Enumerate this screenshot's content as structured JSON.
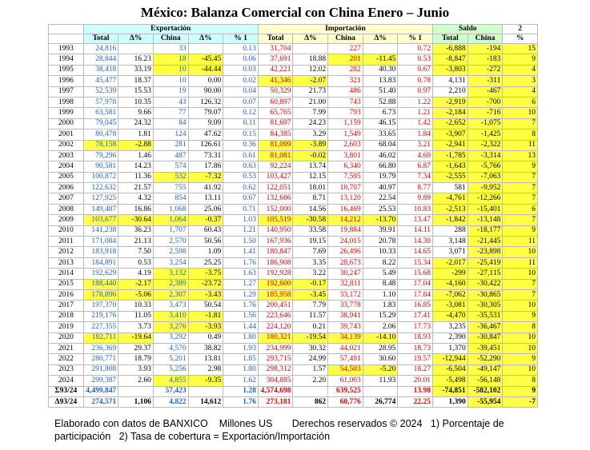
{
  "header": {
    "title": "México: Balanza Comercial con China Enero – Junio"
  },
  "table": {
    "groups": [
      "Exportación",
      "Importación",
      "Saldo",
      "2"
    ],
    "columns": [
      "Total",
      "Δ%",
      "China",
      "Δ%",
      "% 1",
      "Total",
      "Δ%",
      "China",
      "Δ%",
      "% 1",
      "Total",
      "China",
      "%"
    ],
    "rows": [
      [
        "1993",
        "24,816",
        "",
        "33",
        "",
        "0.13",
        "31,704",
        "",
        "227",
        "",
        "0.72",
        "-6,888",
        "-194",
        "15"
      ],
      [
        "1994",
        "28,844",
        "16.23",
        "18",
        "-45.45",
        "0.06",
        "37,691",
        "18.88",
        "201",
        "-11.45",
        "0.53",
        "-8,847",
        "-183",
        "9"
      ],
      [
        "1995",
        "38,418",
        "33.19",
        "10",
        "-44.44",
        "0.03",
        "42,221",
        "12.02",
        "282",
        "40.30",
        "0.67",
        "-3,803",
        "-272",
        "4"
      ],
      [
        "1996",
        "45,477",
        "18.37",
        "10",
        "0.00",
        "0.02",
        "41,346",
        "-2.07",
        "321",
        "13.83",
        "0.78",
        "4,131",
        "-311",
        "3"
      ],
      [
        "1997",
        "52,539",
        "15.53",
        "19",
        "90.00",
        "0.04",
        "50,329",
        "21.73",
        "486",
        "51.40",
        "0.97",
        "2,210",
        "-467",
        "4"
      ],
      [
        "1998",
        "57,978",
        "10.35",
        "43",
        "126.32",
        "0.07",
        "60,897",
        "21.00",
        "743",
        "52.88",
        "1.22",
        "-2,919",
        "-700",
        "6"
      ],
      [
        "1999",
        "63,581",
        "9.66",
        "77",
        "79.07",
        "0.12",
        "65,765",
        "7.99",
        "793",
        "6.73",
        "1.21",
        "-2,184",
        "-716",
        "10"
      ],
      [
        "2000",
        "79,045",
        "24.32",
        "84",
        "9.09",
        "0.11",
        "81,697",
        "24.23",
        "1,159",
        "46.15",
        "1.42",
        "-2,652",
        "-1,075",
        "7"
      ],
      [
        "2001",
        "80,478",
        "1.81",
        "124",
        "47.62",
        "0.15",
        "84,385",
        "3.29",
        "1,549",
        "33.65",
        "1.84",
        "-3,907",
        "-1,425",
        "8"
      ],
      [
        "2002",
        "78,158",
        "-2.88",
        "281",
        "126.61",
        "0.36",
        "81,099",
        "-3.89",
        "2,603",
        "68.04",
        "3.21",
        "-2,941",
        "-2,322",
        "11"
      ],
      [
        "2003",
        "79,296",
        "1.46",
        "487",
        "73.31",
        "0.61",
        "81,081",
        "-0.02",
        "3,801",
        "46.02",
        "4.69",
        "-1,785",
        "-3,314",
        "13"
      ],
      [
        "2004",
        "90,581",
        "14.23",
        "574",
        "17.86",
        "0.63",
        "92,224",
        "13.74",
        "6,340",
        "66.80",
        "6.87",
        "-1,643",
        "-5,766",
        "9"
      ],
      [
        "2005",
        "100,872",
        "11.36",
        "532",
        "-7.32",
        "0.53",
        "103,427",
        "12.15",
        "7,595",
        "19.79",
        "7.34",
        "-2,555",
        "-7,063",
        "7"
      ],
      [
        "2006",
        "122,632",
        "21.57",
        "755",
        "41.92",
        "0.62",
        "122,051",
        "18.01",
        "10,707",
        "40.97",
        "8.77",
        "581",
        "-9,952",
        "7"
      ],
      [
        "2007",
        "127,925",
        "4.32",
        "854",
        "13.11",
        "0.67",
        "132,686",
        "8.71",
        "13,120",
        "22.54",
        "9.89",
        "-4,761",
        "-12,266",
        "7"
      ],
      [
        "2008",
        "149,487",
        "16.86",
        "1,068",
        "25.06",
        "0.71",
        "152,000",
        "14.56",
        "16,469",
        "25.53",
        "10.83",
        "-2,513",
        "-15,401",
        "6"
      ],
      [
        "2009",
        "103,677",
        "-30.64",
        "1,064",
        "-0.37",
        "1.03",
        "105,519",
        "-30.58",
        "14,212",
        "-13.70",
        "13.47",
        "-1,842",
        "-13,148",
        "7"
      ],
      [
        "2010",
        "141,238",
        "36.23",
        "1,707",
        "60.43",
        "1.21",
        "140,950",
        "33.58",
        "19,884",
        "39.91",
        "14.11",
        "288",
        "-18,177",
        "9"
      ],
      [
        "2011",
        "171,084",
        "21.13",
        "2,570",
        "50.56",
        "1.50",
        "167,936",
        "19.15",
        "24,015",
        "20.78",
        "14.30",
        "3,148",
        "-21,445",
        "11"
      ],
      [
        "2012",
        "183,918",
        "7.50",
        "2,598",
        "1.09",
        "1.41",
        "180,847",
        "7.69",
        "26,496",
        "10.33",
        "14.65",
        "3,071",
        "-23,898",
        "10"
      ],
      [
        "2013",
        "184,891",
        "0.53",
        "3,254",
        "25.25",
        "1.76",
        "186,908",
        "3.35",
        "28,673",
        "8.22",
        "15.34",
        "-2,017",
        "-25,419",
        "11"
      ],
      [
        "2014",
        "192,629",
        "4.19",
        "3,132",
        "-3.75",
        "1.63",
        "192,928",
        "3.22",
        "30,247",
        "5.49",
        "15.68",
        "-299",
        "-27,115",
        "10"
      ],
      [
        "2015",
        "188,440",
        "-2.17",
        "2,389",
        "-23.72",
        "1.27",
        "192,600",
        "-0.17",
        "32,811",
        "8.48",
        "17.04",
        "-4,160",
        "-30,422",
        "7"
      ],
      [
        "2016",
        "178,896",
        "-5.06",
        "2,307",
        "-3.43",
        "1.29",
        "185,958",
        "-3.45",
        "33,172",
        "1.10",
        "17.84",
        "-7,062",
        "-30,865",
        "7"
      ],
      [
        "2017",
        "197,370",
        "10.33",
        "3,473",
        "50.54",
        "1.76",
        "200,451",
        "7.79",
        "33,778",
        "1.83",
        "16.85",
        "-3,081",
        "-30,305",
        "10"
      ],
      [
        "2018",
        "219,176",
        "11.05",
        "3,410",
        "-1.81",
        "1.56",
        "223,646",
        "11.57",
        "38,941",
        "15.29",
        "17.41",
        "-4,470",
        "-35,531",
        "9"
      ],
      [
        "2019",
        "227,355",
        "3.73",
        "3,276",
        "-3.93",
        "1.44",
        "224,120",
        "0.21",
        "39,743",
        "2.06",
        "17.73",
        "3,235",
        "-36,467",
        "8"
      ],
      [
        "2020",
        "182,711",
        "-19.64",
        "3,292",
        "0.49",
        "1.80",
        "180,321",
        "-19.54",
        "34,139",
        "-14.10",
        "18.93",
        "2,390",
        "-30,847",
        "10"
      ],
      [
        "2021",
        "236,369",
        "29.37",
        "4,570",
        "38.82",
        "1.93",
        "234,999",
        "30.32",
        "44,021",
        "28.95",
        "18.73",
        "1,370",
        "-39,451",
        "10"
      ],
      [
        "2022",
        "280,771",
        "18.79",
        "5,201",
        "13.81",
        "1.85",
        "293,715",
        "24.99",
        "57,491",
        "30.60",
        "19.57",
        "-12,944",
        "-52,290",
        "9"
      ],
      [
        "2023",
        "291,808",
        "3.93",
        "5,256",
        "2.98",
        "1.80",
        "298,312",
        "1.57",
        "54,503",
        "-5.20",
        "18.27",
        "-6,504",
        "-49,147",
        "10"
      ],
      [
        "2024",
        "299,387",
        "2.60",
        "4,855",
        "-9.35",
        "1.62",
        "304,885",
        "2.20",
        "61,003",
        "11.93",
        "20.01",
        "-5,498",
        "-56,148",
        "8"
      ],
      [
        "Σ93/24",
        "4,499,847",
        "",
        "57,423",
        "",
        "1.28",
        "4,574,698",
        "",
        "639,525",
        "",
        "13.98",
        "-74,851",
        "-582,102",
        "9"
      ],
      [
        "Δ93/24",
        "274,571",
        "1,106",
        "4,822",
        "14,612",
        "1.76",
        "273,181",
        "862",
        "60,776",
        "26,774",
        "22.25",
        "1,390",
        "-55,954",
        "-7"
      ]
    ]
  },
  "footer": {
    "source": "Elaborado con datos de BANXICO",
    "units": "Millones US",
    "rights": "Derechos reservados © 2024",
    "note1": "1) Porcentaje de participación",
    "note2": "2) Tasa de cobertura = Exportación/Importación"
  }
}
